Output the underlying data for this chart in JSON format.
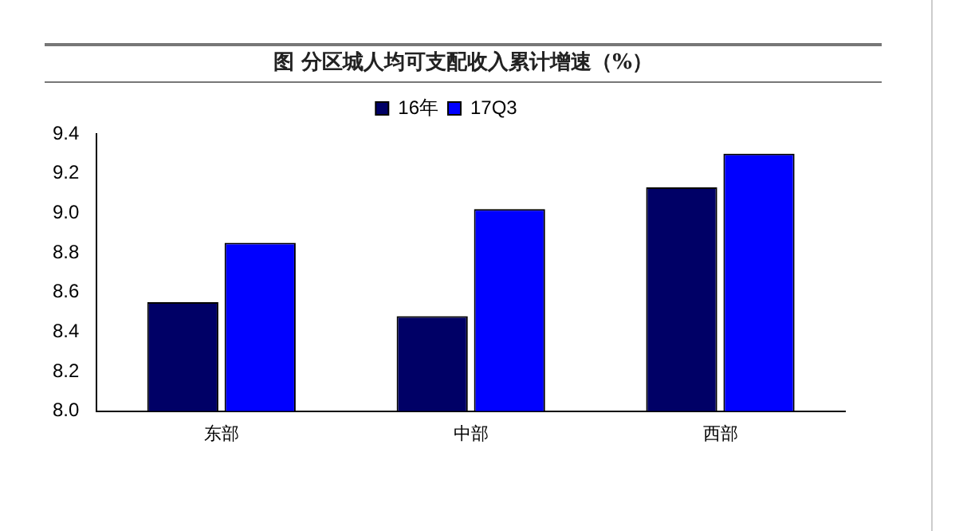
{
  "chart_data": {
    "type": "bar",
    "title": "图  分区城人均可支配收入累计增速（%）",
    "categories": [
      "东部",
      "中部",
      "西部"
    ],
    "series": [
      {
        "name": "16年",
        "color": "#000066",
        "values": [
          8.55,
          8.48,
          9.13
        ]
      },
      {
        "name": "17Q3",
        "color": "#0000ff",
        "values": [
          8.85,
          9.02,
          9.3
        ]
      }
    ],
    "ylim": [
      8.0,
      9.4
    ],
    "yticks": [
      {
        "value": 8.0,
        "label": "8.0"
      },
      {
        "value": 8.2,
        "label": "8.2"
      },
      {
        "value": 8.4,
        "label": "8.4"
      },
      {
        "value": 8.6,
        "label": "8.6"
      },
      {
        "value": 8.8,
        "label": "8.8"
      },
      {
        "value": 9.0,
        "label": "9.0"
      },
      {
        "value": 9.2,
        "label": "9.2"
      },
      {
        "value": 9.4,
        "label": "9.4"
      }
    ],
    "grid": false,
    "legend": "top"
  }
}
